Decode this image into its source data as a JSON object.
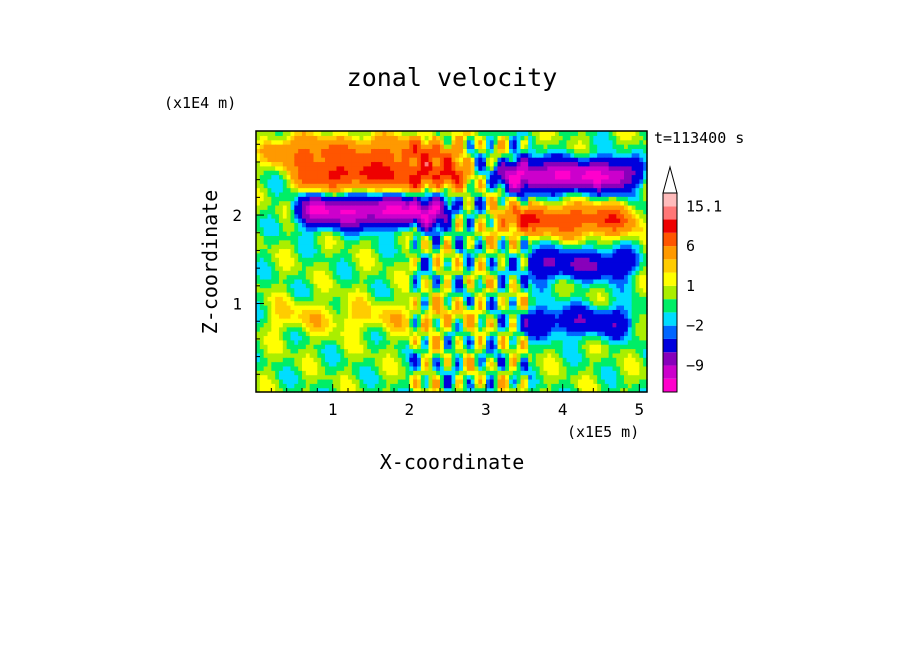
{
  "chart_data": {
    "type": "heatmap",
    "title": "zonal velocity",
    "xlabel": "X-coordinate",
    "ylabel": "Z-coordinate",
    "x_unit": "(x1E5 m)",
    "y_unit": "(x1E4 m)",
    "time_label": "t=113400 s",
    "xlim": [
      0.0,
      5.1
    ],
    "ylim": [
      0.0,
      2.95
    ],
    "x_ticks": [
      1,
      2,
      3,
      4,
      5
    ],
    "y_ticks": [
      1,
      2
    ],
    "colorbar": {
      "levels": [
        -15,
        -12,
        -9,
        -6,
        -3,
        -2,
        -1,
        0,
        1,
        2,
        3,
        6,
        9,
        12,
        15.1
      ],
      "tick_labels": [
        "15.1",
        "6",
        "1",
        "-2",
        "-9"
      ],
      "colors": [
        "#ff00cc",
        "#cc00cc",
        "#8800bb",
        "#0000dd",
        "#0066ff",
        "#00ddff",
        "#00ee66",
        "#aaee00",
        "#ffff00",
        "#ffcc00",
        "#ff9900",
        "#ff5500",
        "#ee0000",
        "#ff7777",
        "#ffbbbb"
      ],
      "arrow": "top"
    },
    "field": {
      "nx": 102,
      "nz": 60,
      "bands": [
        {
          "z": 2.72,
          "amp": 6,
          "x0": 0.0,
          "x1": 2.8
        },
        {
          "z": 2.45,
          "amp": 9,
          "x0": 0.4,
          "x1": 2.9
        },
        {
          "z": 2.05,
          "amp": -12,
          "x0": 0.4,
          "x1": 2.7
        },
        {
          "z": 2.45,
          "amp": -12,
          "x0": 3.0,
          "x1": 5.1
        },
        {
          "z": 1.95,
          "amp": 8,
          "x0": 3.0,
          "x1": 5.1
        },
        {
          "z": 1.45,
          "amp": -6,
          "x0": 3.3,
          "x1": 5.1
        },
        {
          "z": 0.85,
          "amp": 2,
          "x0": 0.0,
          "x1": 3.0
        },
        {
          "z": 0.8,
          "amp": -5,
          "x0": 3.3,
          "x1": 5.1
        }
      ]
    }
  }
}
